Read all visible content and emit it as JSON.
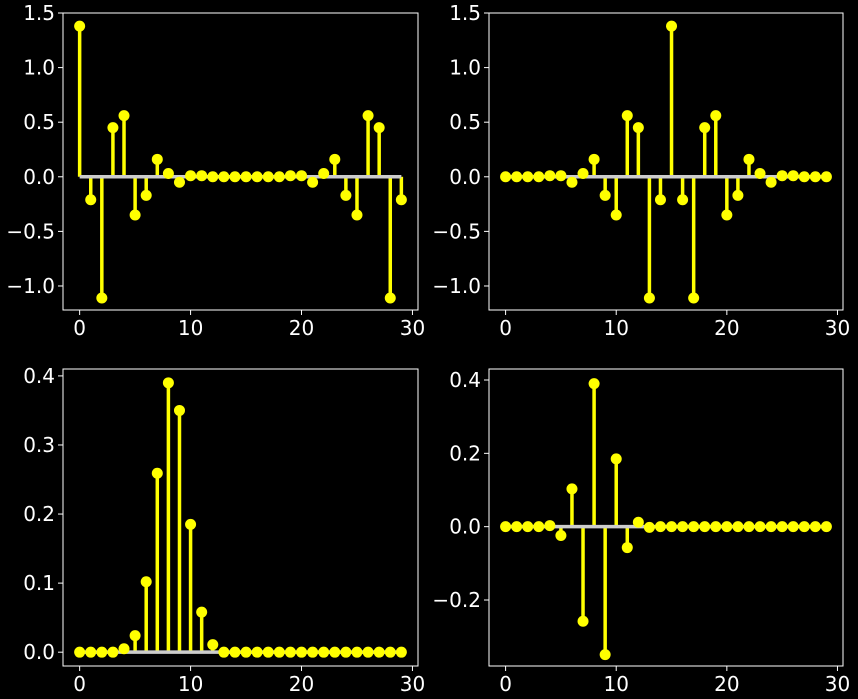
{
  "colors": {
    "background": "#000000",
    "stem": "#ffff00",
    "marker": "#ffff00",
    "baseline": "#cccccc",
    "axes": "#ffffff",
    "text": "#ffffff"
  },
  "chart_data": [
    {
      "type": "stem",
      "position": "top-left",
      "xlim": [
        -1.5,
        30.5
      ],
      "ylim": [
        -1.22,
        1.5
      ],
      "xticks": [
        0,
        10,
        20,
        30
      ],
      "yticks": [
        -1.0,
        -0.5,
        0.0,
        0.5,
        1.0,
        1.5
      ],
      "ytick_labels": [
        "−1.0",
        "−0.5",
        "0.0",
        "0.5",
        "1.0",
        "1.5"
      ],
      "x": [
        0,
        1,
        2,
        3,
        4,
        5,
        6,
        7,
        8,
        9,
        10,
        11,
        12,
        13,
        14,
        15,
        16,
        17,
        18,
        19,
        20,
        21,
        22,
        23,
        24,
        25,
        26,
        27,
        28,
        29
      ],
      "y": [
        1.38,
        -0.21,
        -1.11,
        0.45,
        0.56,
        -0.35,
        -0.17,
        0.16,
        0.03,
        -0.05,
        0.01,
        0.01,
        0.0,
        0.0,
        0.0,
        0.0,
        0.0,
        0.0,
        0.0,
        0.01,
        0.01,
        -0.05,
        0.03,
        0.16,
        -0.17,
        -0.35,
        0.56,
        0.45,
        -1.11,
        -0.21
      ]
    },
    {
      "type": "stem",
      "position": "top-right",
      "xlim": [
        -1.5,
        30.5
      ],
      "ylim": [
        -1.22,
        1.5
      ],
      "xticks": [
        0,
        10,
        20,
        30
      ],
      "yticks": [
        -1.0,
        -0.5,
        0.0,
        0.5,
        1.0,
        1.5
      ],
      "ytick_labels": [
        "−1.0",
        "−0.5",
        "0.0",
        "0.5",
        "1.0",
        "1.5"
      ],
      "x": [
        0,
        1,
        2,
        3,
        4,
        5,
        6,
        7,
        8,
        9,
        10,
        11,
        12,
        13,
        14,
        15,
        16,
        17,
        18,
        19,
        20,
        21,
        22,
        23,
        24,
        25,
        26,
        27,
        28,
        29
      ],
      "y": [
        0.0,
        0.0,
        0.0,
        0.0,
        0.01,
        0.01,
        -0.05,
        0.03,
        0.16,
        -0.17,
        -0.35,
        0.56,
        0.45,
        -1.11,
        -0.21,
        1.38,
        -0.21,
        -1.11,
        0.45,
        0.56,
        -0.35,
        -0.17,
        0.16,
        0.03,
        -0.05,
        0.01,
        0.01,
        0.0,
        0.0,
        0.0
      ]
    },
    {
      "type": "stem",
      "position": "bottom-left",
      "xlim": [
        -1.5,
        30.5
      ],
      "ylim": [
        -0.02,
        0.41
      ],
      "xticks": [
        0,
        10,
        20,
        30
      ],
      "yticks": [
        0.0,
        0.1,
        0.2,
        0.3,
        0.4
      ],
      "ytick_labels": [
        "0.0",
        "0.1",
        "0.2",
        "0.3",
        "0.4"
      ],
      "x": [
        0,
        1,
        2,
        3,
        4,
        5,
        6,
        7,
        8,
        9,
        10,
        11,
        12,
        13,
        14,
        15,
        16,
        17,
        18,
        19,
        20,
        21,
        22,
        23,
        24,
        25,
        26,
        27,
        28,
        29
      ],
      "y": [
        0.0,
        0.0,
        0.0,
        0.0,
        0.005,
        0.024,
        0.102,
        0.259,
        0.39,
        0.35,
        0.185,
        0.058,
        0.011,
        0.0,
        0.0,
        0.0,
        0.0,
        0.0,
        0.0,
        0.0,
        0.0,
        0.0,
        0.0,
        0.0,
        0.0,
        0.0,
        0.0,
        0.0,
        0.0,
        0.0
      ]
    },
    {
      "type": "stem",
      "position": "bottom-right",
      "xlim": [
        -1.5,
        30.5
      ],
      "ylim": [
        -0.38,
        0.43
      ],
      "xticks": [
        0,
        10,
        20,
        30
      ],
      "yticks": [
        -0.2,
        0.0,
        0.2,
        0.4
      ],
      "ytick_labels": [
        "−0.2",
        "0.0",
        "0.2",
        "0.4"
      ],
      "x": [
        0,
        1,
        2,
        3,
        4,
        5,
        6,
        7,
        8,
        9,
        10,
        11,
        12,
        13,
        14,
        15,
        16,
        17,
        18,
        19,
        20,
        21,
        22,
        23,
        24,
        25,
        26,
        27,
        28,
        29
      ],
      "y": [
        0.0,
        0.0,
        0.0,
        0.0,
        0.003,
        -0.024,
        0.103,
        -0.258,
        0.39,
        -0.349,
        0.185,
        -0.057,
        0.012,
        -0.002,
        0.0,
        0.0,
        0.0,
        0.0,
        0.0,
        0.0,
        0.0,
        0.0,
        0.0,
        0.0,
        0.0,
        0.0,
        0.0,
        0.0,
        0.0,
        0.0
      ]
    }
  ]
}
